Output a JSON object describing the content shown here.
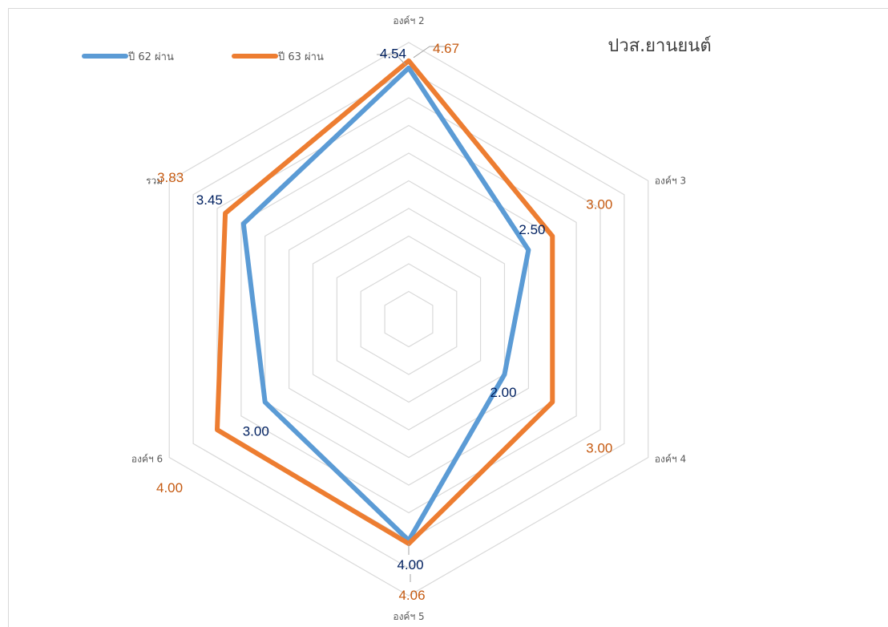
{
  "chart_data": {
    "type": "radar",
    "title": "ปวส.ยานยนต์",
    "categories": [
      "องค์ฯ 2",
      "องค์ฯ 3",
      "องค์ฯ 4",
      "องค์ฯ 5",
      "องค์ฯ 6",
      "รวม"
    ],
    "series": [
      {
        "name": "ปี 62  ผ่าน",
        "values": [
          4.54,
          2.5,
          2.0,
          4.0,
          3.0,
          3.45
        ],
        "labels": [
          "4.54",
          "2.50",
          "2.00",
          "4.00",
          "3.00",
          "3.45"
        ],
        "color": "#5B9BD5",
        "label_color": "#002060"
      },
      {
        "name": "ปี 63  ผ่าน",
        "values": [
          4.67,
          3.0,
          3.0,
          4.06,
          4.0,
          3.83
        ],
        "labels": [
          "4.67",
          "3.00",
          "3.00",
          "4.06",
          "4.00",
          "3.83"
        ],
        "color": "#ED7D31",
        "label_color": "#C55A11"
      }
    ],
    "rmax": 5,
    "grid_rings": 10,
    "grid_color": "#d9d9d9",
    "legend_position": "top-left"
  }
}
